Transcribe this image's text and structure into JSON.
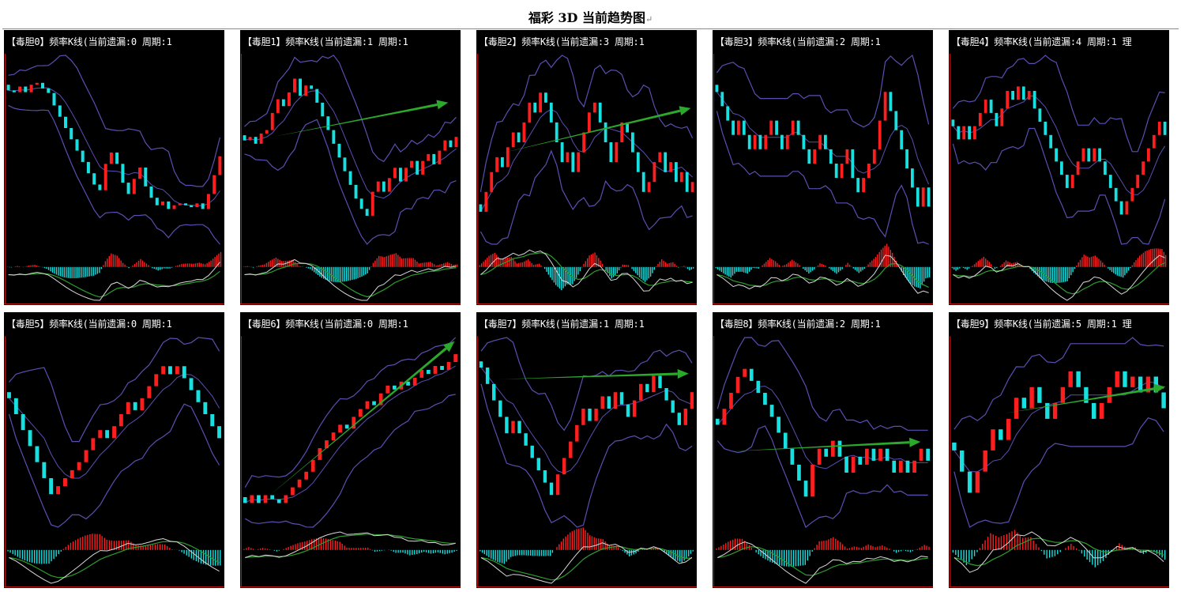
{
  "page": {
    "title": "福彩 3D 当前趋势图",
    "title_mark": "↵"
  },
  "chart_data": [
    {
      "type": "candlestick",
      "title": "【毒胆0】频率K线(当前遗漏:0 周期:1",
      "closes": [
        2.5,
        2.0,
        3.5,
        2.0,
        4.0,
        4.5,
        3.0,
        1.8,
        -1.5,
        -4.5,
        -7.5,
        -10.5,
        -13.5,
        -16.5,
        -19.5,
        -22.5,
        -24.0,
        -17.0,
        -14.0,
        -17.0,
        -22.0,
        -25.0,
        -21.0,
        -18.0,
        -23.0,
        -26.0,
        -28.0,
        -27.0,
        -29.0,
        -28.0,
        -27.5,
        -28.0,
        -28.5,
        -27.5,
        -29.0,
        -25.0,
        -20.0,
        -15.0
      ]
    },
    {
      "type": "candlestick",
      "title": "【毒胆1】频率K线(当前遗漏:1 周期:1",
      "closes": [
        0,
        1,
        -1,
        2,
        3,
        8,
        12,
        10,
        14,
        18,
        13,
        16,
        15,
        11,
        7,
        3,
        -1,
        -5,
        -9,
        -13,
        -17,
        -20,
        -22,
        -15,
        -12,
        -15,
        -11,
        -8,
        -12,
        -8,
        -6,
        -10,
        -6,
        -4,
        -7,
        -3,
        0,
        -2,
        1
      ],
      "trend_from": [
        0.15,
        0.43
      ],
      "trend_to": [
        0.95,
        0.25
      ]
    },
    {
      "type": "candlestick",
      "title": "【毒胆2】频率K线(当前遗漏:3 周期:1",
      "closes": [
        0,
        4,
        8,
        11,
        9,
        13,
        16,
        14,
        18,
        22,
        20,
        24,
        22,
        18,
        14,
        10,
        12,
        8,
        12,
        16,
        20,
        22,
        18,
        14,
        10,
        14,
        18,
        16,
        12,
        8,
        4,
        6,
        10,
        12,
        8,
        10,
        6,
        8,
        4,
        6
      ],
      "trend_from": [
        0.1,
        0.52
      ],
      "trend_to": [
        0.98,
        0.28
      ]
    },
    {
      "type": "candlestick",
      "title": "【毒胆3】频率K线(当前遗漏:2 周期:1",
      "closes": [
        8,
        5,
        2,
        -1,
        2,
        -1,
        -4,
        -1,
        -4,
        -1,
        2,
        -1,
        -4,
        -1,
        2,
        -1,
        -4,
        -7,
        -4,
        -1,
        -4,
        -7,
        -10,
        -7,
        -4,
        -10,
        -13,
        -10,
        -7,
        -4,
        2,
        8,
        4,
        0,
        -4,
        -8,
        -12,
        -16,
        -12,
        -16
      ],
      "trend_from": null,
      "trend_to": null
    },
    {
      "type": "candlestick",
      "title": "【毒胆4】频率K线(当前遗漏:4 周期:1 理",
      "closes": [
        0,
        -3,
        0,
        -3,
        0,
        3,
        6,
        3,
        0,
        4,
        8,
        6,
        9,
        6,
        8,
        4,
        1,
        -2,
        -5,
        -8,
        -11,
        -14,
        -11,
        -8,
        -5,
        -8,
        -5,
        -8,
        -11,
        -14,
        -17,
        -20,
        -17,
        -14,
        -11,
        -8,
        -5,
        -2,
        1,
        -2
      ]
    },
    {
      "type": "candlestick",
      "title": "【毒胆5】频率K线(当前遗漏:0 周期:1",
      "closes": [
        10,
        6,
        2,
        -2,
        -6,
        -10,
        -14,
        -12,
        -10,
        -8,
        -6,
        -3,
        0,
        2,
        0,
        3,
        6,
        9,
        7,
        10,
        13,
        16,
        18,
        16,
        18,
        15,
        12,
        9,
        6,
        3,
        0
      ]
    },
    {
      "type": "candlestick",
      "title": "【毒胆6】频率K线(当前遗漏:0 周期:1",
      "closes": [
        0,
        2,
        0,
        2,
        1,
        0,
        2,
        4,
        6,
        8,
        11,
        14,
        16,
        18,
        20,
        19,
        22,
        24,
        26,
        25,
        28,
        30,
        29,
        31,
        30,
        32,
        34,
        33,
        35,
        34,
        36,
        38
      ],
      "trend_from": [
        0.12,
        0.84
      ],
      "trend_to": [
        0.98,
        0.02
      ]
    },
    {
      "type": "candlestick",
      "title": "【毒胆7】频率K线(当前遗漏:1 周期:1",
      "closes": [
        10,
        6,
        2,
        -2,
        -6,
        -3,
        -6,
        -9,
        -12,
        -15,
        -18,
        -21,
        -16,
        -12,
        -8,
        -4,
        0,
        -3,
        0,
        3,
        0,
        4,
        1,
        -2,
        2,
        6,
        4,
        8,
        5,
        2,
        -1,
        -4,
        0,
        4
      ],
      "trend_from": [
        0.1,
        0.22
      ],
      "trend_to": [
        0.97,
        0.19
      ]
    },
    {
      "type": "candlestick",
      "title": "【毒胆8】频率K线(当前遗漏:2 周期:1",
      "closes": [
        0,
        4,
        8,
        12,
        14,
        11,
        8,
        5,
        2,
        -2,
        -6,
        -10,
        -14,
        -18,
        -10,
        -6,
        -8,
        -4,
        -8,
        -12,
        -8,
        -10,
        -6,
        -9,
        -6,
        -9,
        -12,
        -9,
        -12,
        -9,
        -6,
        -9
      ],
      "trend_from": [
        0.08,
        0.6
      ],
      "trend_to": [
        0.95,
        0.55
      ]
    },
    {
      "type": "candlestick",
      "title": "【毒胆9】频率K线(当前遗漏:5 周期:1 理",
      "closes": [
        0,
        -4,
        -8,
        -4,
        0,
        4,
        2,
        6,
        10,
        8,
        12,
        9,
        6,
        9,
        12,
        15,
        12,
        9,
        6,
        9,
        12,
        15,
        12,
        14,
        11,
        14,
        11,
        8
      ],
      "trend_from": [
        0.25,
        0.4
      ],
      "trend_to": [
        0.99,
        0.26
      ]
    }
  ],
  "colors": {
    "up": "#ff1e1e",
    "down": "#19e0e0",
    "band": "#5a4fb3",
    "trend": "#2ca82c",
    "axis": "#c01010",
    "macd_slow": "#2e9e2e",
    "macd_fast": "#d8d8d8"
  }
}
